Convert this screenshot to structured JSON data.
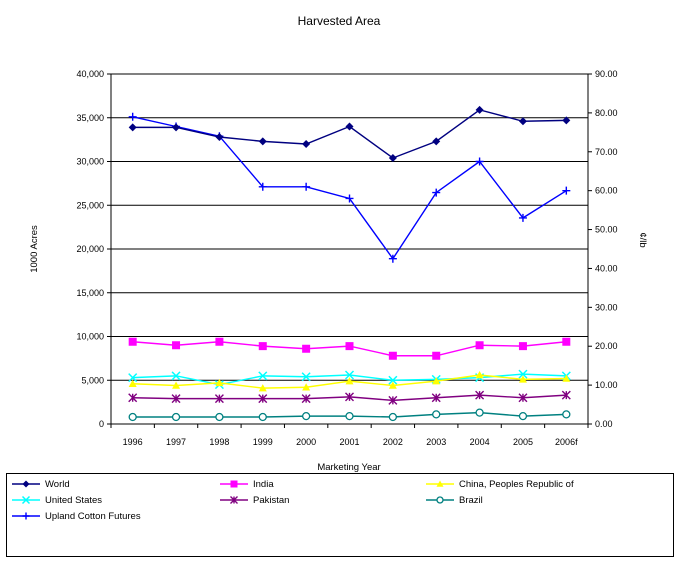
{
  "chart_data": {
    "type": "line",
    "title": "Harvested Area",
    "xlabel": "Marketing Year",
    "ylabel": "1000 Acres",
    "y2label": "¢/lb",
    "categories": [
      "1996",
      "1997",
      "1998",
      "1999",
      "2000",
      "2001",
      "2002",
      "2003",
      "2004",
      "2005",
      "2006f"
    ],
    "ylim": [
      0,
      40000
    ],
    "y2lim": [
      0,
      90
    ],
    "yticks": [
      "0",
      "5,000",
      "10,000",
      "15,000",
      "20,000",
      "25,000",
      "30,000",
      "35,000",
      "40,000"
    ],
    "y2ticks": [
      "0.00",
      "10.00",
      "20.00",
      "30.00",
      "40.00",
      "50.00",
      "60.00",
      "70.00",
      "80.00",
      "90.00"
    ],
    "grid": true,
    "legend_position": "bottom",
    "series": [
      {
        "name": "World",
        "axis": "left",
        "color": "#000080",
        "marker": "diamond",
        "values": [
          33900,
          33900,
          32800,
          32300,
          32000,
          34000,
          30400,
          32300,
          35900,
          34600,
          34700
        ]
      },
      {
        "name": "India",
        "axis": "left",
        "color": "#ff00ff",
        "marker": "square",
        "values": [
          9400,
          9000,
          9400,
          8900,
          8600,
          8900,
          7800,
          7800,
          9000,
          8900,
          9400
        ]
      },
      {
        "name": "China, Peoples Republic of",
        "axis": "left",
        "color": "#ffff00",
        "marker": "triangle",
        "values": [
          4600,
          4400,
          4700,
          4100,
          4200,
          4900,
          4400,
          4900,
          5600,
          5100,
          5200
        ]
      },
      {
        "name": "United States",
        "axis": "left",
        "color": "#00ffff",
        "marker": "x",
        "values": [
          5300,
          5500,
          4500,
          5500,
          5400,
          5600,
          5000,
          5100,
          5300,
          5700,
          5500
        ]
      },
      {
        "name": "Pakistan",
        "axis": "left",
        "color": "#800080",
        "marker": "star",
        "values": [
          3000,
          2900,
          2900,
          2900,
          2900,
          3100,
          2700,
          3000,
          3300,
          3000,
          3300
        ]
      },
      {
        "name": "Brazil",
        "axis": "left",
        "color": "#008080",
        "marker": "circle",
        "values": [
          800,
          800,
          800,
          800,
          900,
          900,
          800,
          1100,
          1300,
          900,
          1100
        ]
      },
      {
        "name": "Upland Cotton Futures",
        "axis": "right",
        "color": "#0000ff",
        "marker": "plus",
        "values": [
          79.0,
          76.5,
          74.0,
          61.0,
          61.0,
          58.0,
          42.5,
          59.5,
          67.5,
          53.0,
          60.0
        ]
      }
    ]
  }
}
